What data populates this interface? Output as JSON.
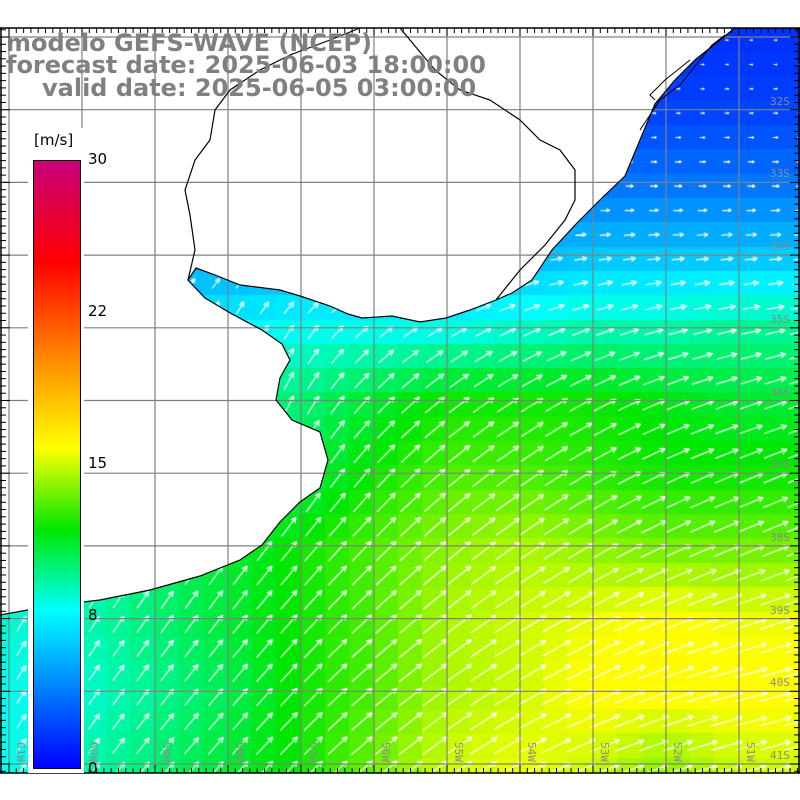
{
  "title": {
    "line1": "modelo GEFS-WAVE (NCEP)",
    "line2": "forecast date: 2025-06-03 18:00:00",
    "line3": "valid date: 2025-06-05 03:00:00"
  },
  "colorbar": {
    "unit": "[m/s]",
    "ticks": [
      "30",
      "22",
      "15",
      "8",
      "0"
    ],
    "range": [
      0,
      30
    ],
    "stops": [
      {
        "v": 0,
        "color": "#0000ff"
      },
      {
        "v": 7.8,
        "color": "#00ffff"
      },
      {
        "v": 11.8,
        "color": "#00e600"
      },
      {
        "v": 15.8,
        "color": "#ffff00"
      },
      {
        "v": 19.4,
        "color": "#ffa000"
      },
      {
        "v": 25,
        "color": "#ff0000"
      },
      {
        "v": 30,
        "color": "#c8007a"
      }
    ]
  },
  "axes": {
    "lon_labels": [
      "61W",
      "60W",
      "59W",
      "58W",
      "57W",
      "56W",
      "55W",
      "54W",
      "53W",
      "52W",
      "51W"
    ],
    "lat_labels": [
      "32S",
      "33S",
      "34S",
      "35S",
      "36S",
      "37S",
      "38S",
      "39S",
      "40S",
      "41S"
    ]
  },
  "wind_field": {
    "units": "m/s",
    "lats": [
      31,
      32,
      33,
      34,
      35,
      36,
      37,
      38,
      39,
      40,
      41
    ],
    "lons": [
      61,
      60,
      59,
      58,
      57,
      56,
      55,
      54,
      53,
      52,
      51
    ],
    "speed": [
      [
        1,
        1,
        1,
        1,
        1,
        1,
        1,
        1,
        2,
        1.5,
        1.5
      ],
      [
        2,
        2,
        2,
        2,
        2,
        2,
        2,
        2,
        2,
        2,
        2
      ],
      [
        4,
        4,
        4,
        4,
        4,
        4,
        4,
        4,
        3.5,
        3.5,
        3.5
      ],
      [
        5,
        5,
        5,
        5,
        5,
        5,
        5,
        5.5,
        6,
        6,
        6
      ],
      [
        7,
        7,
        7,
        7.5,
        8,
        8,
        8,
        8.5,
        9,
        9,
        9.5
      ],
      [
        9,
        9,
        9,
        10,
        10,
        11,
        12,
        12,
        12,
        11.5,
        11
      ],
      [
        9,
        9,
        10,
        10,
        10.5,
        12,
        13,
        13,
        12.5,
        12,
        12
      ],
      [
        9,
        9,
        10,
        11,
        12,
        13,
        14,
        14.5,
        14,
        13.5,
        13.5
      ],
      [
        8.5,
        9,
        10,
        11,
        12,
        13,
        14.5,
        15,
        15.5,
        16,
        15.5
      ],
      [
        8,
        8.5,
        9.5,
        10.5,
        12,
        13,
        14.5,
        15,
        16,
        16,
        16
      ],
      [
        8,
        9,
        10,
        11,
        12,
        13.5,
        15,
        15.5,
        15,
        14,
        15
      ]
    ],
    "direction_deg_ccw_from_east": [
      [
        0,
        0,
        0,
        0,
        0,
        0,
        0,
        0,
        0,
        0,
        0
      ],
      [
        0,
        0,
        0,
        0,
        0,
        0,
        0,
        0,
        0,
        0,
        0
      ],
      [
        5,
        5,
        5,
        5,
        5,
        5,
        5,
        0,
        0,
        0,
        0
      ],
      [
        60,
        55,
        50,
        40,
        25,
        20,
        15,
        10,
        8,
        5,
        5
      ],
      [
        75,
        75,
        75,
        70,
        55,
        40,
        30,
        25,
        20,
        15,
        12
      ],
      [
        80,
        80,
        80,
        78,
        60,
        45,
        38,
        32,
        28,
        22,
        18
      ],
      [
        70,
        70,
        70,
        68,
        58,
        48,
        40,
        35,
        30,
        25,
        22
      ],
      [
        60,
        60,
        58,
        55,
        50,
        45,
        40,
        35,
        30,
        25,
        22
      ],
      [
        58,
        58,
        55,
        52,
        48,
        42,
        38,
        32,
        28,
        22,
        18
      ],
      [
        55,
        55,
        52,
        50,
        46,
        40,
        35,
        30,
        25,
        20,
        15
      ],
      [
        55,
        55,
        50,
        48,
        45,
        40,
        35,
        28,
        22,
        18,
        15
      ]
    ]
  }
}
